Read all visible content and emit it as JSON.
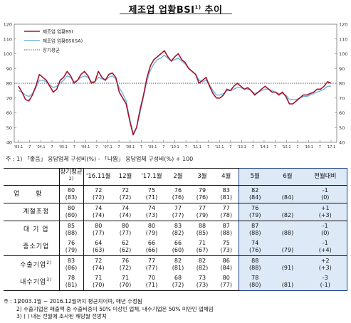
{
  "title": "제조업 업황BSI",
  "title_sup": "1)",
  "chart_note": "주 : 1) 「좋음」 응답업체 구성비(%) - 「나쁨」 응답업체 구성비(%) + 100",
  "chart_data": {
    "type": "line",
    "ylim": [
      40,
      120
    ],
    "yticks": [
      "40",
      "50",
      "60",
      "70",
      "80",
      "90",
      "100",
      "110",
      "120"
    ],
    "xtick_labels": [
      "'03.1",
      "7",
      "'04.1",
      "7",
      "'05.1",
      "7",
      "'06.1",
      "7",
      "'07.1",
      "7",
      "'08.1",
      "7",
      "'09.1",
      "7",
      "'10.1",
      "7",
      "'11.1",
      "7",
      "'12.1",
      "7",
      "'13.1",
      "7",
      "'14.1",
      "7",
      "'15.1",
      "7",
      "'16.1",
      "7",
      "'17.1"
    ],
    "long_term_avg_value": 80,
    "series": [
      {
        "name": "제조업 업황BSI",
        "color": "#a3132b",
        "values": [
          78,
          74,
          69,
          68,
          72,
          78,
          86,
          84,
          82,
          78,
          74,
          76,
          82,
          84,
          88,
          85,
          80,
          82,
          86,
          88,
          85,
          80,
          81,
          88,
          84,
          82,
          86,
          87,
          84,
          74,
          70,
          66,
          55,
          45,
          50,
          62,
          72,
          84,
          92,
          96,
          98,
          100,
          102,
          98,
          95,
          98,
          100,
          96,
          94,
          90,
          88,
          86,
          80,
          82,
          84,
          78,
          73,
          70,
          70,
          72,
          76,
          75,
          78,
          80,
          78,
          76,
          77,
          75,
          72,
          74,
          76,
          78,
          76,
          74,
          74,
          72,
          74,
          71,
          66,
          66,
          68,
          70,
          72,
          72,
          73,
          74,
          76,
          76,
          78,
          81,
          80
        ]
      },
      {
        "name": "제조업 업황BSI(SA)",
        "color": "#6fb7e0",
        "values": [
          75,
          74,
          72,
          71,
          73,
          77,
          82,
          82,
          81,
          79,
          77,
          78,
          80,
          82,
          85,
          84,
          81,
          82,
          84,
          85,
          84,
          81,
          81,
          84,
          83,
          82,
          84,
          85,
          83,
          77,
          73,
          68,
          56,
          46,
          50,
          60,
          71,
          82,
          89,
          93,
          96,
          97,
          99,
          97,
          95,
          96,
          97,
          95,
          93,
          90,
          88,
          86,
          82,
          81,
          82,
          79,
          75,
          72,
          72,
          73,
          75,
          75,
          76,
          77,
          77,
          76,
          76,
          75,
          73,
          74,
          75,
          76,
          76,
          75,
          74,
          73,
          73,
          72,
          69,
          69,
          69,
          70,
          71,
          71,
          72,
          73,
          74,
          75,
          76,
          78,
          78
        ]
      },
      {
        "name": "장기평균",
        "color": "#555555",
        "style": "dotted",
        "values": [
          80
        ]
      }
    ]
  },
  "table": {
    "headers": [
      "장기평균",
      "'16.11월",
      "12월",
      "'17.1월",
      "2월",
      "3월",
      "4월",
      "5월",
      "6월",
      "전월대비"
    ],
    "header_sup": "2)",
    "rows": [
      {
        "label": "업 황",
        "values": [
          "80\n(83)",
          "72\n(72)",
          "72\n(72)",
          "75\n(71)",
          "76\n(76)",
          "79\n(76)",
          "83\n(81)",
          "82\n(84)",
          "\n(84)",
          "-1\n(0)"
        ]
      },
      {
        "label": "계절조정",
        "values": [
          "80\n(80)",
          "74\n(74)",
          "74\n(74)",
          "74\n(73)",
          "77\n(77)",
          "77\n(79)",
          "77\n(78)",
          "76\n(79)",
          "\n(82)",
          "+1\n(+3)"
        ]
      },
      {
        "label": "대 기 업",
        "values": [
          "85\n(88)",
          "80\n(77)",
          "80\n(77)",
          "80\n(79)",
          "83\n(82)",
          "88\n(85)",
          "87\n(88)",
          "87\n(88)",
          "\n(88)",
          "-1\n(0)"
        ]
      },
      {
        "label": "중소기업",
        "values": [
          "76\n(79)",
          "64\n(63)",
          "62\n(62)",
          "66\n(66)",
          "66\n(60)",
          "71\n(67)",
          "75\n(73)",
          "74\n(76)",
          "\n(79)",
          "-1\n(+4)"
        ]
      },
      {
        "label": "수출기업",
        "sup": "2)",
        "values": [
          "83\n(86)",
          "72\n(74)",
          "76\n(72)",
          "77\n(77)",
          "82\n(81)",
          "82\n(82)",
          "86\n(84)",
          "88\n(88)",
          "\n(91)",
          "+2\n(+3)"
        ]
      },
      {
        "label": "내수기업",
        "sup": "3)",
        "values": [
          "78\n(81)",
          "71\n(70)",
          "71\n(70)",
          "70\n(71)",
          "68\n(72)",
          "73\n(73)",
          "80\n(77)",
          "78\n(80)",
          "\n(81)",
          "-3\n(-1)"
        ]
      }
    ]
  },
  "notes": [
    {
      "num": "주 : 1)",
      "text": "2003.1월 ~ 2016.12월까지 평균치이며, 매년 수정됨"
    },
    {
      "num": "2)",
      "text": "수출기업은 매출액 중 수출비중이 50% 이상인 업체, 내수기업은 50% 미만인 업체임"
    },
    {
      "num": "3)",
      "text": "( ) 내는 전월에 조사된 해당월 전망치"
    }
  ]
}
